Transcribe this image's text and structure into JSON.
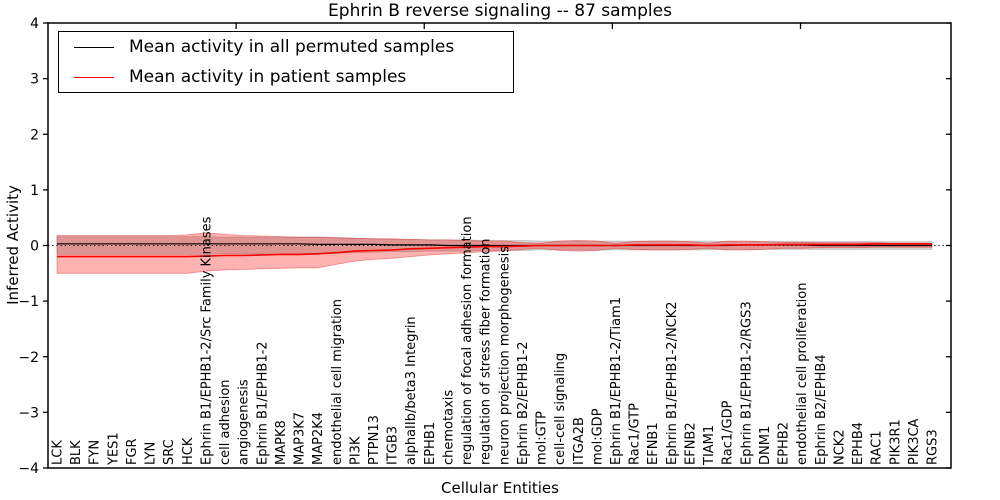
{
  "chart_data": {
    "type": "line",
    "title": "Ephrin B reverse signaling -- 87 samples",
    "xlabel": "Cellular Entities",
    "ylabel": "Inferred Activity",
    "ylim": [
      -4,
      4
    ],
    "ytick_labels": [
      "−4",
      "−3",
      "−2",
      "−1",
      "0",
      "1",
      "2",
      "3",
      "4"
    ],
    "grid": false,
    "legend_position": "upper-left",
    "colors": {
      "permuted_line": "#000000",
      "patient_line": "#ff0000",
      "patient_band_fill": "rgba(255,0,0,0.30)",
      "patient_band_edge": "rgba(225,30,30,0.45)",
      "permuted_band_fill": "rgba(120,120,120,0.32)",
      "permuted_band_edge": "rgba(110,110,110,0.35)",
      "zero_line": "#000000"
    },
    "categories": [
      "LCK",
      "BLK",
      "FYN",
      "YES1",
      "FGR",
      "LYN",
      "SRC",
      "HCK",
      "Ephrin B1/EPHB1-2/Src Family Kinases",
      "cell adhesion",
      "angiogenesis",
      "Ephrin B1/EPHB1-2",
      "MAPK8",
      "MAP3K7",
      "MAP2K4",
      "endothelial cell migration",
      "PI3K",
      "PTPN13",
      "ITGB3",
      "alphaIIb/beta3 Integrin",
      "EPHB1",
      "chemotaxis",
      "regulation of focal adhesion formation",
      "regulation of stress fiber formation",
      "neuron projection morphogenesis",
      "Ephrin B2/EPHB1-2",
      "mol:GTP",
      "cell-cell signaling",
      "ITGA2B",
      "mol:GDP",
      "Ephrin B1/EPHB1-2/Tiam1",
      "Rac1/GTP",
      "EFNB1",
      "Ephrin B1/EPHB1-2/NCK2",
      "EFNB2",
      "TIAM1",
      "Rac1/GDP",
      "Ephrin B1/EPHB1-2/RGS3",
      "DNM1",
      "EPHB2",
      "endothelial cell proliferation",
      "Ephrin B2/EPHB4",
      "NCK2",
      "EPHB4",
      "RAC1",
      "PIK3R1",
      "PIK3CA",
      "RGS3"
    ],
    "series": [
      {
        "name": "Mean activity in all permuted samples",
        "color": "#000000",
        "values": [
          0.03,
          0.03,
          0.03,
          0.03,
          0.03,
          0.03,
          0.03,
          0.03,
          0.03,
          0.03,
          0.03,
          0.03,
          0.03,
          0.03,
          0.02,
          0.02,
          0.02,
          0.02,
          0.01,
          0.01,
          0.01,
          0.0,
          0.0,
          0.0,
          0.0,
          0.0,
          0.0,
          0.0,
          0.0,
          0.0,
          0.0,
          0.0,
          0.0,
          0.0,
          0.0,
          0.0,
          0.0,
          0.01,
          0.01,
          0.01,
          0.01,
          0.0,
          0.0,
          0.0,
          0.0,
          0.0,
          0.0,
          0.0
        ]
      },
      {
        "name": "Mean activity in patient samples",
        "color": "#ff0000",
        "values": [
          -0.2,
          -0.2,
          -0.2,
          -0.2,
          -0.2,
          -0.2,
          -0.2,
          -0.2,
          -0.19,
          -0.18,
          -0.18,
          -0.17,
          -0.16,
          -0.16,
          -0.15,
          -0.13,
          -0.1,
          -0.09,
          -0.08,
          -0.06,
          -0.05,
          -0.04,
          -0.03,
          -0.02,
          -0.02,
          -0.01,
          0.0,
          0.0,
          0.0,
          0.0,
          0.0,
          0.01,
          0.01,
          0.01,
          0.01,
          0.0,
          0.01,
          0.01,
          0.01,
          0.02,
          0.02,
          0.02,
          0.02,
          0.02,
          0.03,
          0.03,
          0.03,
          0.03
        ]
      }
    ],
    "bands": [
      {
        "name": "permuted-std-band",
        "upper": [
          0.16,
          0.16,
          0.16,
          0.16,
          0.16,
          0.16,
          0.16,
          0.16,
          0.16,
          0.15,
          0.15,
          0.15,
          0.15,
          0.15,
          0.15,
          0.14,
          0.13,
          0.12,
          0.11,
          0.11,
          0.1,
          0.1,
          0.1,
          0.09,
          0.09,
          0.09,
          0.08,
          0.08,
          0.08,
          0.08,
          0.08,
          0.08,
          0.08,
          0.08,
          0.08,
          0.08,
          0.07,
          0.07,
          0.07,
          0.07,
          0.07,
          0.07,
          0.07,
          0.07,
          0.07,
          0.07,
          0.07,
          0.07
        ],
        "lower": [
          -0.16,
          -0.16,
          -0.16,
          -0.16,
          -0.16,
          -0.16,
          -0.16,
          -0.16,
          -0.16,
          -0.15,
          -0.15,
          -0.15,
          -0.15,
          -0.15,
          -0.15,
          -0.14,
          -0.13,
          -0.12,
          -0.11,
          -0.11,
          -0.1,
          -0.1,
          -0.1,
          -0.09,
          -0.09,
          -0.09,
          -0.08,
          -0.08,
          -0.08,
          -0.08,
          -0.08,
          -0.08,
          -0.08,
          -0.08,
          -0.08,
          -0.08,
          -0.07,
          -0.07,
          -0.07,
          -0.07,
          -0.07,
          -0.07,
          -0.07,
          -0.07,
          -0.07,
          -0.07,
          -0.07,
          -0.07
        ]
      },
      {
        "name": "patient-std-band",
        "upper": [
          0.18,
          0.18,
          0.18,
          0.18,
          0.18,
          0.18,
          0.18,
          0.19,
          0.23,
          0.2,
          0.18,
          0.17,
          0.16,
          0.15,
          0.15,
          0.14,
          0.13,
          0.12,
          0.12,
          0.11,
          0.1,
          0.1,
          0.09,
          0.08,
          0.08,
          0.05,
          0.04,
          0.08,
          0.09,
          0.08,
          0.04,
          0.07,
          0.08,
          0.08,
          0.07,
          0.04,
          0.08,
          0.08,
          0.07,
          0.06,
          0.06,
          0.05,
          0.05,
          0.05,
          0.05,
          0.04,
          0.04,
          0.04
        ],
        "lower": [
          -0.5,
          -0.5,
          -0.5,
          -0.5,
          -0.5,
          -0.5,
          -0.5,
          -0.5,
          -0.46,
          -0.44,
          -0.43,
          -0.42,
          -0.41,
          -0.4,
          -0.4,
          -0.34,
          -0.28,
          -0.25,
          -0.23,
          -0.2,
          -0.17,
          -0.15,
          -0.13,
          -0.11,
          -0.1,
          -0.07,
          -0.05,
          -0.09,
          -0.1,
          -0.09,
          -0.05,
          -0.07,
          -0.08,
          -0.08,
          -0.07,
          -0.05,
          -0.08,
          -0.08,
          -0.07,
          -0.05,
          -0.05,
          -0.04,
          -0.04,
          -0.04,
          -0.03,
          -0.03,
          -0.03,
          -0.03
        ]
      }
    ],
    "zero_line": {
      "y": 0,
      "style": "dotted"
    }
  },
  "legend": {
    "permuted_label": "Mean activity in all permuted samples",
    "patient_label": "Mean activity in patient samples"
  }
}
